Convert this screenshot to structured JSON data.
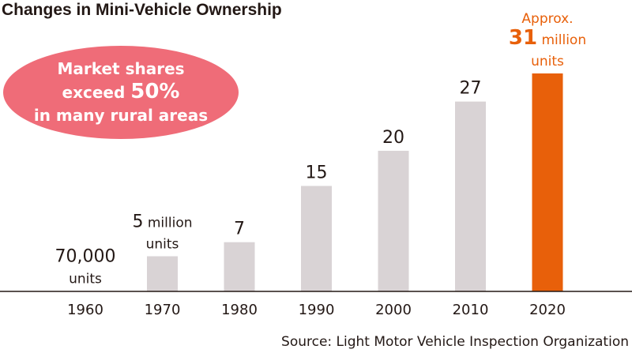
{
  "title": "Changes in Mini-Vehicle Ownership",
  "callout": {
    "line1": "Market shares",
    "line2_prefix": "exceed ",
    "line2_value": "50%",
    "line3": "in many rural areas"
  },
  "source": "Source: Light Motor Vehicle Inspection Organization",
  "colors": {
    "bar": "#d9d3d5",
    "highlight_bar": "#e8600a",
    "callout": "#ef6c78",
    "axis": "#231815",
    "text": "#231815"
  },
  "chart_data": {
    "type": "bar",
    "title": "Changes in Mini-Vehicle Ownership",
    "categories": [
      "1960",
      "1970",
      "1980",
      "1990",
      "2000",
      "2010",
      "2020"
    ],
    "values": [
      0.07,
      5,
      7,
      15,
      20,
      27,
      31
    ],
    "unit": "million units",
    "highlight_index": 6,
    "data_labels": [
      {
        "lines": [
          {
            "big": "70,000"
          },
          {
            "small": "units"
          }
        ]
      },
      {
        "lines": [
          {
            "big": "5",
            "small": " million"
          },
          {
            "small": "units"
          }
        ]
      },
      {
        "lines": [
          {
            "big": "7"
          }
        ]
      },
      {
        "lines": [
          {
            "big": "15"
          }
        ]
      },
      {
        "lines": [
          {
            "big": "20"
          }
        ]
      },
      {
        "lines": [
          {
            "big": "27"
          }
        ]
      },
      {
        "lines": [
          {
            "small": "Approx."
          },
          {
            "big": "31",
            "small": " million"
          },
          {
            "small": "units"
          }
        ]
      }
    ],
    "ylim": [
      0,
      31
    ],
    "grid": false,
    "legend": "none"
  }
}
